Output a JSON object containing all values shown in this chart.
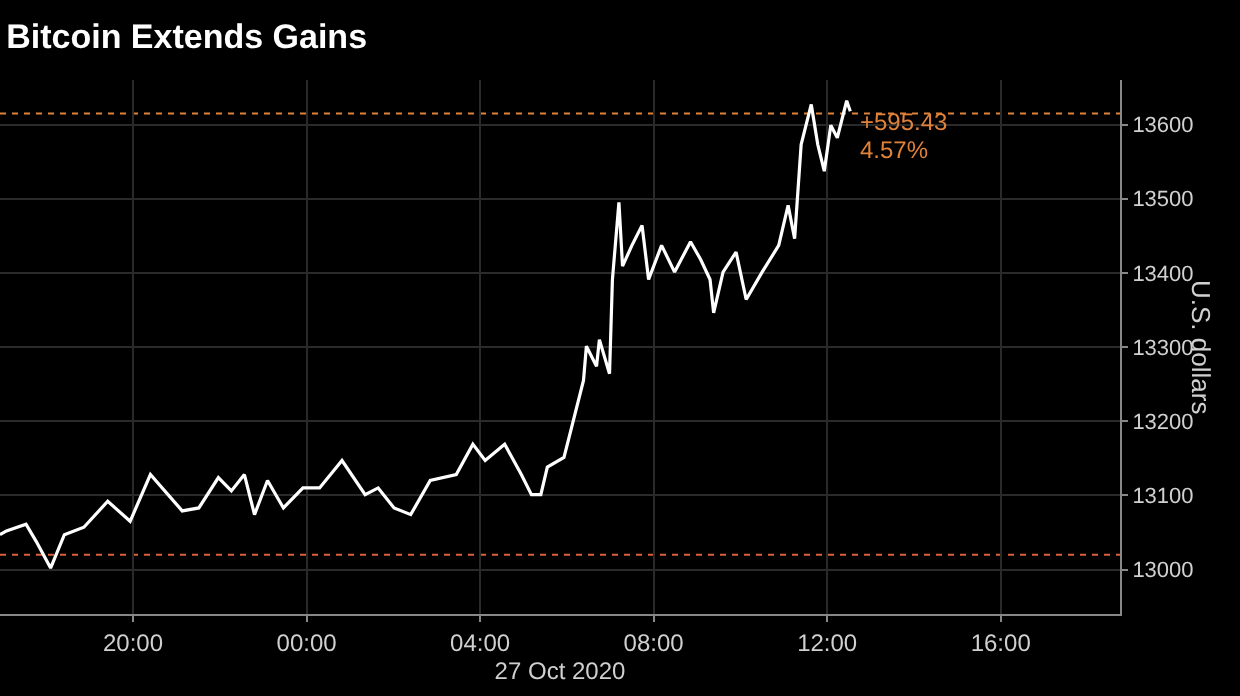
{
  "chart_data": {
    "type": "line",
    "title": "Bitcoin Extends Gains",
    "xlabel": "27 Oct 2020",
    "ylabel": "U.S. dollars",
    "x": [
      "2020-10-26T16:56",
      "2020-10-26T17:05",
      "2020-10-26T17:32",
      "2020-10-26T17:46",
      "2020-10-26T18:06",
      "2020-10-26T18:25",
      "2020-10-26T18:52",
      "2020-10-26T19:25",
      "2020-10-26T19:56",
      "2020-10-26T20:24",
      "2020-10-26T21:08",
      "2020-10-26T21:31",
      "2020-10-26T21:58",
      "2020-10-26T22:16",
      "2020-10-26T22:34",
      "2020-10-26T22:48",
      "2020-10-26T23:06",
      "2020-10-26T23:28",
      "2020-10-26T23:55",
      "2020-10-27T00:18",
      "2020-10-27T00:49",
      "2020-10-27T01:21",
      "2020-10-27T01:39",
      "2020-10-27T02:01",
      "2020-10-27T02:24",
      "2020-10-27T02:51",
      "2020-10-27T03:27",
      "2020-10-27T03:50",
      "2020-10-27T04:07",
      "2020-10-27T04:34",
      "2020-10-27T04:57",
      "2020-10-27T05:11",
      "2020-10-27T05:24",
      "2020-10-27T05:33",
      "2020-10-27T05:56",
      "2020-10-27T06:09",
      "2020-10-27T06:23",
      "2020-10-27T06:27",
      "2020-10-27T06:41",
      "2020-10-27T06:45",
      "2020-10-27T06:59",
      "2020-10-27T07:03",
      "2020-10-27T07:12",
      "2020-10-27T07:17",
      "2020-10-27T07:30",
      "2020-10-27T07:44",
      "2020-10-27T07:53",
      "2020-10-27T08:11",
      "2020-10-27T08:29",
      "2020-10-27T08:51",
      "2020-10-27T09:05",
      "2020-10-27T09:18",
      "2020-10-27T09:23",
      "2020-10-27T09:36",
      "2020-10-27T09:54",
      "2020-10-27T10:08",
      "2020-10-27T10:30",
      "2020-10-27T10:53",
      "2020-10-27T11:06",
      "2020-10-27T11:15",
      "2020-10-27T11:24",
      "2020-10-27T11:38",
      "2020-10-27T11:47",
      "2020-10-27T11:56",
      "2020-10-27T12:05",
      "2020-10-27T12:14",
      "2020-10-27T12:27",
      "2020-10-27T12:32"
    ],
    "series": [
      {
        "color": "#ffffff",
        "values": [
          13047,
          13052,
          13061,
          13038,
          13002,
          13047,
          13057,
          13092,
          13065,
          13128,
          13079,
          13083,
          13124,
          13106,
          13128,
          13074,
          13120,
          13083,
          13110,
          13110,
          13147,
          13101,
          13110,
          13083,
          13074,
          13120,
          13128,
          13169,
          13147,
          13169,
          13128,
          13101,
          13101,
          13138,
          13151,
          13201,
          13255,
          13301,
          13274,
          13310,
          13264,
          13391,
          13495,
          13409,
          13437,
          13464,
          13391,
          13437,
          13401,
          13442,
          13418,
          13391,
          13346,
          13401,
          13428,
          13364,
          13401,
          13437,
          13491,
          13446,
          13573,
          13627,
          13573,
          13537,
          13599,
          13582,
          13632,
          13618
        ]
      }
    ],
    "xlim": [
      "2020-10-26T16:56",
      "2020-10-27T18:45"
    ],
    "xticks": [
      {
        "value": "2020-10-26T20:00",
        "label": "20:00"
      },
      {
        "value": "2020-10-27T00:00",
        "label": "00:00"
      },
      {
        "value": "2020-10-27T04:00",
        "label": "04:00"
      },
      {
        "value": "2020-10-27T08:00",
        "label": "08:00"
      },
      {
        "value": "2020-10-27T12:00",
        "label": "12:00"
      },
      {
        "value": "2020-10-27T16:00",
        "label": "16:00"
      }
    ],
    "ylim": [
      12940,
      13660
    ],
    "yticks": [
      13000,
      13100,
      13200,
      13300,
      13400,
      13500,
      13600
    ],
    "grid": true,
    "ref_lines": [
      {
        "axis": "y",
        "value": 13020,
        "color": "#d9603a",
        "line_style": "dotted"
      },
      {
        "axis": "y",
        "value": 13615,
        "color": "#e0823a",
        "line_style": "dotted"
      }
    ],
    "annotations": [
      {
        "text": "+595.43",
        "x": "2020-10-27T12:32",
        "y": 13615
      },
      {
        "text": "4.57%",
        "x": "2020-10-27T12:32",
        "y": 13615
      }
    ]
  }
}
